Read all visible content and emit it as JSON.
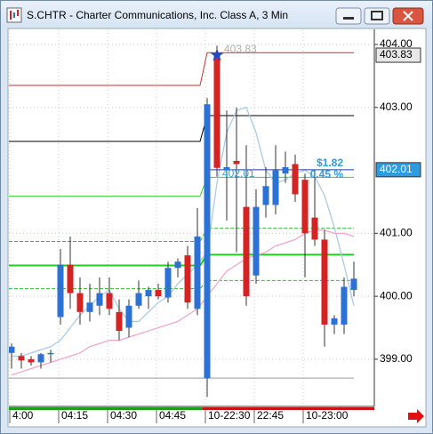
{
  "window": {
    "title": "S.CHTR - Charter Communications, Inc. Class A, 3 Min"
  },
  "chart_data": {
    "type": "candlestick",
    "categories": [
      "4:00",
      null,
      null,
      null,
      null,
      "04:15",
      null,
      null,
      null,
      null,
      "04:30",
      null,
      null,
      null,
      null,
      "04:45",
      null,
      null,
      null,
      null,
      "10-22:30",
      null,
      null,
      null,
      null,
      "22:45",
      null,
      null,
      null,
      null,
      "10-23:00",
      null,
      null,
      null,
      null,
      null
    ],
    "open": [
      399.1,
      399.05,
      399.0,
      398.95,
      399.08,
      399.67,
      400.5,
      400.05,
      399.75,
      399.85,
      400.05,
      399.75,
      399.5,
      399.85,
      400.0,
      400.1,
      399.98,
      400.45,
      400.65,
      399.8,
      398.7,
      403.83,
      402.0,
      402.15,
      401.42,
      400.33,
      401.45,
      401.45,
      401.95,
      402.1,
      401.85,
      401.25,
      400.9,
      399.55,
      399.55,
      400.1
    ],
    "high": [
      399.25,
      399.1,
      399.05,
      399.1,
      399.15,
      400.75,
      400.95,
      400.3,
      400.2,
      400.3,
      400.3,
      399.95,
      399.95,
      400.25,
      400.15,
      400.2,
      400.55,
      400.6,
      400.8,
      401.4,
      403.15,
      403.98,
      402.95,
      403.0,
      402.4,
      401.7,
      402.05,
      402.4,
      402.3,
      402.25,
      401.95,
      402.0,
      401.05,
      399.7,
      400.3,
      400.55
    ],
    "low": [
      398.85,
      398.85,
      398.9,
      398.85,
      398.95,
      399.55,
      399.8,
      399.55,
      399.6,
      399.7,
      399.7,
      399.3,
      399.35,
      399.8,
      399.8,
      399.95,
      399.9,
      400.3,
      399.8,
      399.7,
      398.4,
      401.9,
      401.2,
      400.7,
      399.85,
      400.2,
      401.25,
      401.3,
      401.8,
      401.5,
      400.3,
      400.8,
      399.2,
      399.4,
      399.4,
      400.0
    ],
    "close": [
      399.2,
      398.98,
      398.95,
      399.08,
      399.1,
      400.5,
      400.05,
      399.75,
      399.9,
      400.05,
      399.8,
      399.45,
      399.85,
      400.05,
      400.1,
      400.0,
      400.45,
      400.55,
      399.9,
      400.95,
      403.05,
      402.04,
      402.05,
      402.1,
      400.0,
      401.42,
      401.75,
      402.0,
      402.05,
      401.62,
      401.0,
      400.9,
      399.55,
      399.65,
      400.15,
      400.28
    ],
    "up_color": "#2b72d4",
    "down_color": "#d42323",
    "series": [
      {
        "color": "#a9cbe6",
        "values": [
          399.05,
          399.05,
          399.1,
          399.15,
          399.2,
          399.3,
          399.5,
          399.7,
          399.85,
          400.0,
          400.1,
          399.8,
          399.6,
          399.6,
          399.75,
          399.9,
          400.0,
          400.2,
          400.35,
          400.5,
          400.7,
          401.8,
          402.6,
          402.95,
          403.0,
          402.6,
          402.0,
          401.8,
          401.85,
          401.95,
          402.0,
          401.9,
          401.6,
          401.1,
          400.5,
          399.85
        ]
      },
      {
        "color": "#f2a6cb",
        "values": [
          398.75,
          398.8,
          398.85,
          398.9,
          398.95,
          399.0,
          399.05,
          399.1,
          399.2,
          399.25,
          399.3,
          399.3,
          399.35,
          399.4,
          399.45,
          399.5,
          399.55,
          399.6,
          399.7,
          399.8,
          400.0,
          400.2,
          400.4,
          400.5,
          400.6,
          400.65,
          400.7,
          400.8,
          400.85,
          400.9,
          401.0,
          401.05,
          401.05,
          401.0,
          401.0,
          400.95
        ]
      }
    ],
    "levels": [
      {
        "color": "#c83232",
        "values": [
          403.35,
          403.87
        ]
      },
      {
        "color": "#000000",
        "values": [
          402.46,
          402.87
        ]
      },
      {
        "color": "#3ccc3c",
        "values": [
          401.59,
          401.89
        ]
      },
      {
        "color": "#33bb33",
        "values": [
          400.87,
          401.08
        ],
        "dash": true
      },
      {
        "color": "#22cc22",
        "values": [
          400.49,
          400.66
        ],
        "width": 2
      },
      {
        "color": "#33bb33",
        "values": [
          400.12,
          400.25
        ],
        "dash": true
      },
      {
        "color": "#999999",
        "values": [
          398.7,
          398.7
        ]
      }
    ],
    "price_line": {
      "value": 402.01,
      "color": "#1a3f9a"
    },
    "price_labels": [
      {
        "value": 403.83,
        "label": "403.83",
        "color": "#e8e8e8"
      },
      {
        "value": 402.01,
        "label": "402.01",
        "color": "#2e9be0"
      }
    ],
    "annotations": [
      "403.83",
      "402.01",
      "$1.82",
      "0.45 %"
    ],
    "ylim": [
      398.25,
      404.24
    ],
    "yticks": [
      {
        "value": 399,
        "label": "399.00"
      },
      {
        "value": 400,
        "label": "400.00"
      },
      {
        "value": 401,
        "label": "401.00"
      },
      {
        "value": 403,
        "label": "403.00"
      },
      {
        "value": 404,
        "label": "404.00"
      }
    ],
    "grid": true
  }
}
